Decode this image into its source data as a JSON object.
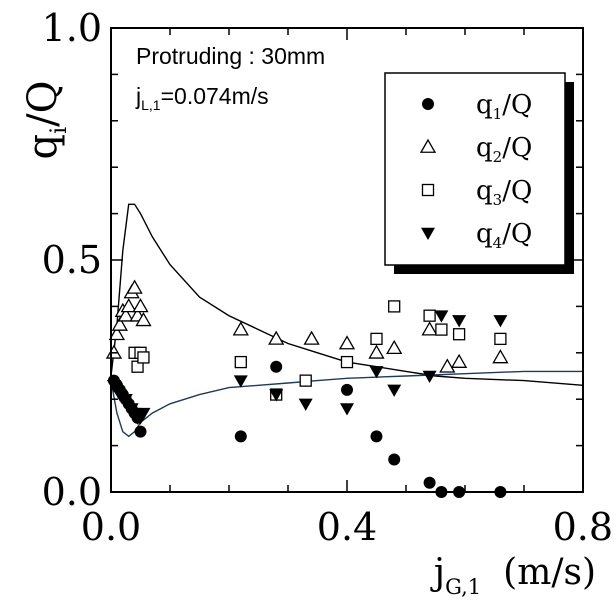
{
  "chart_data": {
    "type": "scatter",
    "title": "",
    "annotations": {
      "line1": "Protruding : 30mm",
      "line2_main": "j",
      "line2_sub": "L,1",
      "line2_rest": "=0.074m/s"
    },
    "xlabel": {
      "main": "j",
      "sub": "G,1",
      "unit": "(m/s)"
    },
    "ylabel": {
      "main": "q",
      "sub": "i",
      "rest": "/Q"
    },
    "xlim": [
      0,
      0.8
    ],
    "ylim": [
      0,
      1.0
    ],
    "x_ticks": [
      {
        "value": 0.0,
        "label": "0.0"
      },
      {
        "value": 0.4,
        "label": "0.4"
      },
      {
        "value": 0.8,
        "label": "0.8"
      }
    ],
    "y_ticks": [
      {
        "value": 0.0,
        "label": "0.0"
      },
      {
        "value": 0.5,
        "label": "0.5"
      },
      {
        "value": 1.0,
        "label": "1.0"
      }
    ],
    "legend_position": "top-right",
    "series": [
      {
        "name": "q1/Q",
        "name_main": "q",
        "name_sub": "1",
        "name_rest": "/Q",
        "marker": "circle-filled",
        "points": [
          [
            0.005,
            0.24
          ],
          [
            0.01,
            0.23
          ],
          [
            0.015,
            0.22
          ],
          [
            0.02,
            0.21
          ],
          [
            0.025,
            0.2
          ],
          [
            0.03,
            0.19
          ],
          [
            0.035,
            0.18
          ],
          [
            0.04,
            0.17
          ],
          [
            0.045,
            0.16
          ],
          [
            0.05,
            0.13
          ],
          [
            0.22,
            0.12
          ],
          [
            0.28,
            0.27
          ],
          [
            0.33,
            0.24
          ],
          [
            0.4,
            0.22
          ],
          [
            0.45,
            0.12
          ],
          [
            0.48,
            0.07
          ],
          [
            0.54,
            0.02
          ],
          [
            0.56,
            0.0
          ],
          [
            0.59,
            0.0
          ],
          [
            0.66,
            0.0
          ]
        ]
      },
      {
        "name": "q2/Q",
        "name_main": "q",
        "name_sub": "2",
        "name_rest": "/Q",
        "marker": "triangle-up-open",
        "points": [
          [
            0.005,
            0.3
          ],
          [
            0.01,
            0.34
          ],
          [
            0.015,
            0.36
          ],
          [
            0.02,
            0.39
          ],
          [
            0.025,
            0.38
          ],
          [
            0.03,
            0.4
          ],
          [
            0.035,
            0.43
          ],
          [
            0.04,
            0.44
          ],
          [
            0.045,
            0.38
          ],
          [
            0.05,
            0.4
          ],
          [
            0.055,
            0.37
          ],
          [
            0.22,
            0.35
          ],
          [
            0.28,
            0.33
          ],
          [
            0.34,
            0.33
          ],
          [
            0.4,
            0.32
          ],
          [
            0.45,
            0.3
          ],
          [
            0.48,
            0.31
          ],
          [
            0.54,
            0.35
          ],
          [
            0.57,
            0.27
          ],
          [
            0.59,
            0.28
          ],
          [
            0.66,
            0.29
          ]
        ]
      },
      {
        "name": "q3/Q",
        "name_main": "q",
        "name_sub": "3",
        "name_rest": "/Q",
        "marker": "square-open",
        "points": [
          [
            0.04,
            0.3
          ],
          [
            0.045,
            0.27
          ],
          [
            0.05,
            0.3
          ],
          [
            0.055,
            0.29
          ],
          [
            0.22,
            0.28
          ],
          [
            0.28,
            0.21
          ],
          [
            0.33,
            0.24
          ],
          [
            0.4,
            0.28
          ],
          [
            0.45,
            0.33
          ],
          [
            0.48,
            0.4
          ],
          [
            0.54,
            0.38
          ],
          [
            0.56,
            0.35
          ],
          [
            0.59,
            0.34
          ],
          [
            0.66,
            0.33
          ]
        ]
      },
      {
        "name": "q4/Q",
        "name_main": "q",
        "name_sub": "4",
        "name_rest": "/Q",
        "marker": "triangle-down-filled",
        "points": [
          [
            0.005,
            0.23
          ],
          [
            0.015,
            0.21
          ],
          [
            0.025,
            0.2
          ],
          [
            0.035,
            0.18
          ],
          [
            0.04,
            0.17
          ],
          [
            0.045,
            0.16
          ],
          [
            0.05,
            0.16
          ],
          [
            0.055,
            0.17
          ],
          [
            0.22,
            0.24
          ],
          [
            0.28,
            0.21
          ],
          [
            0.33,
            0.19
          ],
          [
            0.4,
            0.18
          ],
          [
            0.45,
            0.26
          ],
          [
            0.48,
            0.22
          ],
          [
            0.54,
            0.25
          ],
          [
            0.56,
            0.38
          ],
          [
            0.59,
            0.37
          ],
          [
            0.66,
            0.37
          ]
        ]
      }
    ],
    "curves": [
      {
        "color": "#000000",
        "points": [
          [
            0.0,
            0.25
          ],
          [
            0.01,
            0.36
          ],
          [
            0.02,
            0.52
          ],
          [
            0.03,
            0.62
          ],
          [
            0.04,
            0.62
          ],
          [
            0.05,
            0.6
          ],
          [
            0.07,
            0.55
          ],
          [
            0.1,
            0.49
          ],
          [
            0.15,
            0.42
          ],
          [
            0.2,
            0.38
          ],
          [
            0.25,
            0.35
          ],
          [
            0.3,
            0.32
          ],
          [
            0.35,
            0.3
          ],
          [
            0.4,
            0.28
          ],
          [
            0.45,
            0.27
          ],
          [
            0.5,
            0.26
          ],
          [
            0.55,
            0.25
          ],
          [
            0.6,
            0.245
          ],
          [
            0.7,
            0.24
          ],
          [
            0.8,
            0.23
          ]
        ]
      },
      {
        "color": "#1f3a5a",
        "points": [
          [
            0.0,
            0.24
          ],
          [
            0.01,
            0.17
          ],
          [
            0.02,
            0.13
          ],
          [
            0.03,
            0.12
          ],
          [
            0.04,
            0.13
          ],
          [
            0.05,
            0.15
          ],
          [
            0.07,
            0.17
          ],
          [
            0.1,
            0.19
          ],
          [
            0.15,
            0.21
          ],
          [
            0.2,
            0.225
          ],
          [
            0.25,
            0.23
          ],
          [
            0.3,
            0.235
          ],
          [
            0.35,
            0.24
          ],
          [
            0.4,
            0.245
          ],
          [
            0.5,
            0.25
          ],
          [
            0.6,
            0.255
          ],
          [
            0.7,
            0.26
          ],
          [
            0.8,
            0.26
          ]
        ]
      }
    ]
  }
}
